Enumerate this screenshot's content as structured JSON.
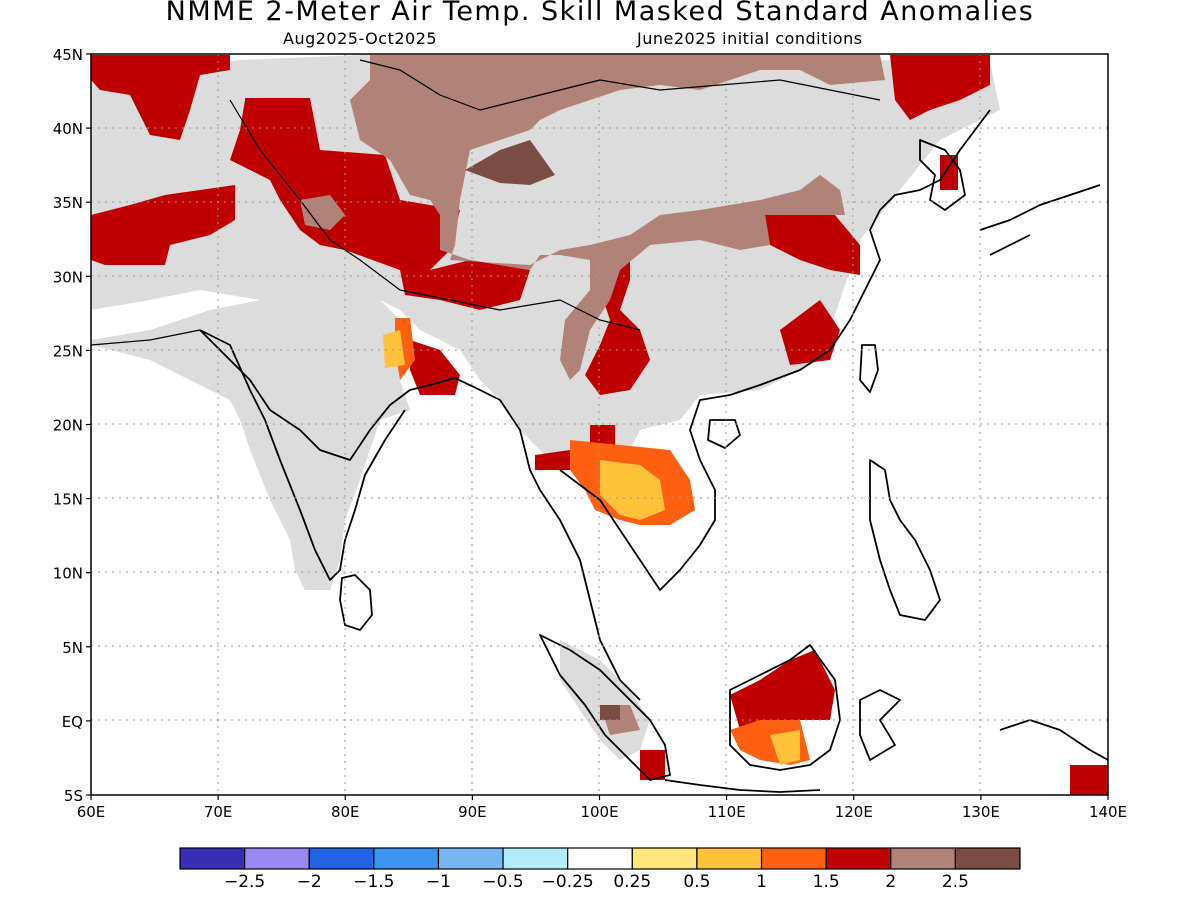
{
  "header": {
    "title": "NMME 2-Meter Air Temp. Skill Masked Standard Anomalies",
    "period": "Aug2025-Oct2025",
    "init": "June2025 initial conditions"
  },
  "axes": {
    "lat_labels": [
      "45N",
      "40N",
      "35N",
      "30N",
      "25N",
      "20N",
      "15N",
      "10N",
      "5N",
      "EQ",
      "5S"
    ],
    "lon_labels": [
      "60E",
      "70E",
      "80E",
      "90E",
      "100E",
      "110E",
      "120E",
      "130E",
      "140E"
    ]
  },
  "chart_data": {
    "type": "heatmap",
    "lon_range": [
      60,
      140
    ],
    "lat_range": [
      -5,
      45
    ],
    "grid": true,
    "colorbar": {
      "colors": [
        "#3a2db5",
        "#9a88f5",
        "#2164e3",
        "#3c96f1",
        "#76b6f5",
        "#b2ecf8",
        "#ffffff",
        "#ffe67a",
        "#ffc03a",
        "#ff5f10",
        "#c00000",
        "#b08278",
        "#7a4c44"
      ],
      "labels": [
        "-2.5",
        "-2",
        "-1.5",
        "-1",
        "-0.5",
        "-0.25",
        "0.25",
        "0.5",
        "1",
        "1.5",
        "2",
        "2.5"
      ]
    },
    "mask_color": "#dcdcdc"
  }
}
